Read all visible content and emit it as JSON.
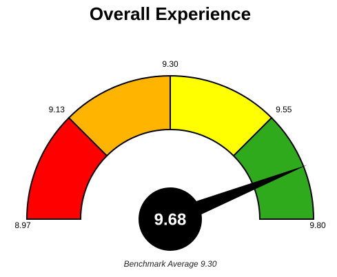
{
  "chart_data": {
    "type": "gauge",
    "title": "Overall Experience",
    "subtitle": "Benchmark Average 9.30",
    "value": 9.68,
    "ticks": [
      8.97,
      9.13,
      {
        "value": 9.3,
        "label": "9.30"
      },
      9.55,
      {
        "value": 9.8,
        "label": "9.80"
      }
    ],
    "band_colors": [
      "#ff0000",
      "#ffb400",
      "#ffff00",
      "#2eaa1c"
    ],
    "needle_color": "#000000"
  }
}
